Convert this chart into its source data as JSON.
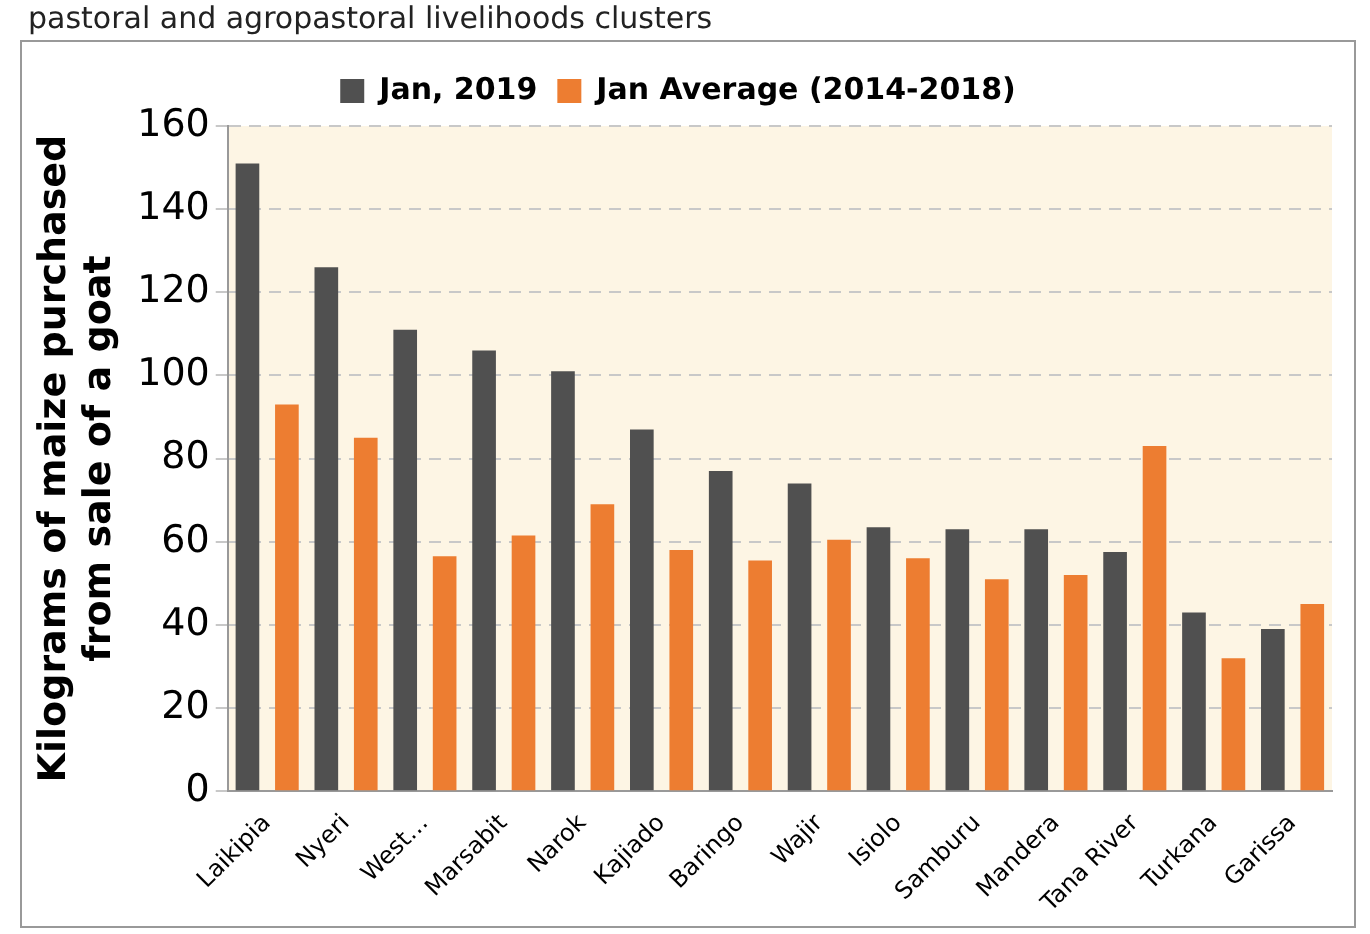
{
  "chart_data": {
    "type": "bar",
    "title": "pastoral and agropastoral livelihoods clusters",
    "ylabel": "Kilograms of maize purchased\nfrom sale of a goat",
    "categories": [
      "Laikipia",
      "Nyeri",
      "West…",
      "Marsabit",
      "Narok",
      "Kajiado",
      "Baringo",
      "Wajir",
      "Isiolo",
      "Samburu",
      "Mandera",
      "Tana River",
      "Turkana",
      "Garissa"
    ],
    "series": [
      {
        "name": "Jan, 2019",
        "color": "#505050",
        "values": [
          151,
          126,
          111,
          106,
          101,
          87,
          77,
          74,
          63.5,
          63,
          63,
          57.5,
          43,
          39
        ]
      },
      {
        "name": "Jan Average (2014-2018)",
        "color": "#ed7d31",
        "values": [
          93,
          85,
          56.5,
          61.5,
          69,
          58,
          55.5,
          60.5,
          56,
          51,
          52,
          83,
          32,
          45
        ]
      }
    ],
    "ylim": [
      0,
      160
    ],
    "yticks": [
      0,
      20,
      40,
      60,
      80,
      100,
      120,
      140,
      160
    ],
    "grid": "y",
    "legend": "top"
  }
}
